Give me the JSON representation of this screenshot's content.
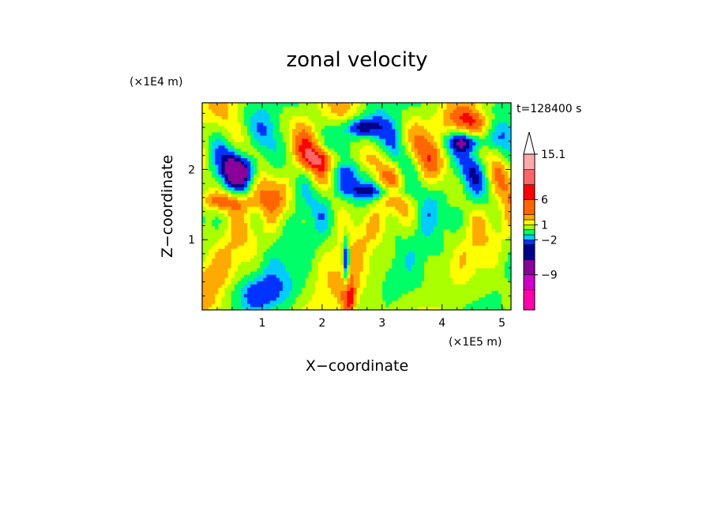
{
  "chart_data": {
    "type": "heatmap",
    "title": "zonal velocity",
    "xlabel": "X−coordinate",
    "ylabel": "Z−coordinate",
    "x_unit": "(×1E5 m)",
    "y_unit": "(×1E4 m)",
    "time_label": "t=128400 s",
    "xlim": [
      0,
      5.15
    ],
    "ylim": [
      0,
      2.95
    ],
    "x_ticks": [
      "1",
      "2",
      "3",
      "4",
      "5"
    ],
    "x_tick_values": [
      1,
      2,
      3,
      4,
      5
    ],
    "y_ticks": [
      "1",
      "2"
    ],
    "y_tick_values": [
      1,
      2
    ],
    "colorbar": {
      "labels": [
        "15.1",
        "6",
        "1",
        "−2",
        "−9"
      ],
      "label_values": [
        15.1,
        6,
        1,
        -2,
        -9
      ],
      "levels": [
        -16,
        -12,
        -9,
        -6,
        -3,
        -2,
        -1,
        0,
        1,
        2,
        3,
        6,
        9,
        12,
        15.1
      ],
      "colors": [
        "#ff00aa",
        "#cc00cc",
        "#880099",
        "#000088",
        "#0033ff",
        "#00ccff",
        "#00ff66",
        "#aaff00",
        "#ffff00",
        "#ffaa00",
        "#ff6600",
        "#ff0000",
        "#ff6666",
        "#ffaaaa"
      ],
      "extend": "max"
    }
  }
}
